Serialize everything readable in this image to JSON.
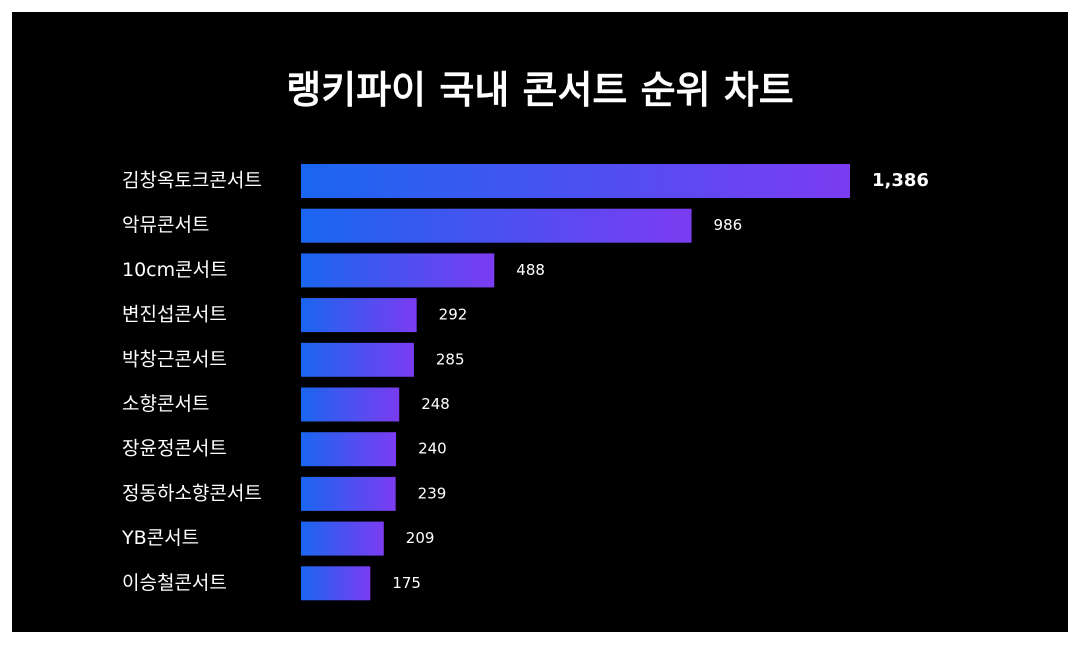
{
  "colors": {
    "background": "#000000",
    "frame_border": "#ffffff",
    "text": "#ffffff",
    "bar_gradient_start": "#1a66f0",
    "bar_gradient_end": "#7b3cf0"
  },
  "chart_data": {
    "type": "bar",
    "orientation": "horizontal",
    "title": "랭키파이 국내 콘서트 순위 차트",
    "categories": [
      "김창옥토크콘서트",
      "악뮤콘서트",
      "10cm콘서트",
      "변진섭콘서트",
      "박창근콘서트",
      "소향콘서트",
      "장윤정콘서트",
      "정동하소향콘서트",
      "YB콘서트",
      "이승철콘서트"
    ],
    "values": [
      1386,
      986,
      488,
      292,
      285,
      248,
      240,
      239,
      209,
      175
    ],
    "value_labels": [
      "1,386",
      "986",
      "488",
      "292",
      "285",
      "248",
      "240",
      "239",
      "209",
      "175"
    ],
    "xlabel": "",
    "ylabel": "",
    "grid": false,
    "legend": "none"
  }
}
